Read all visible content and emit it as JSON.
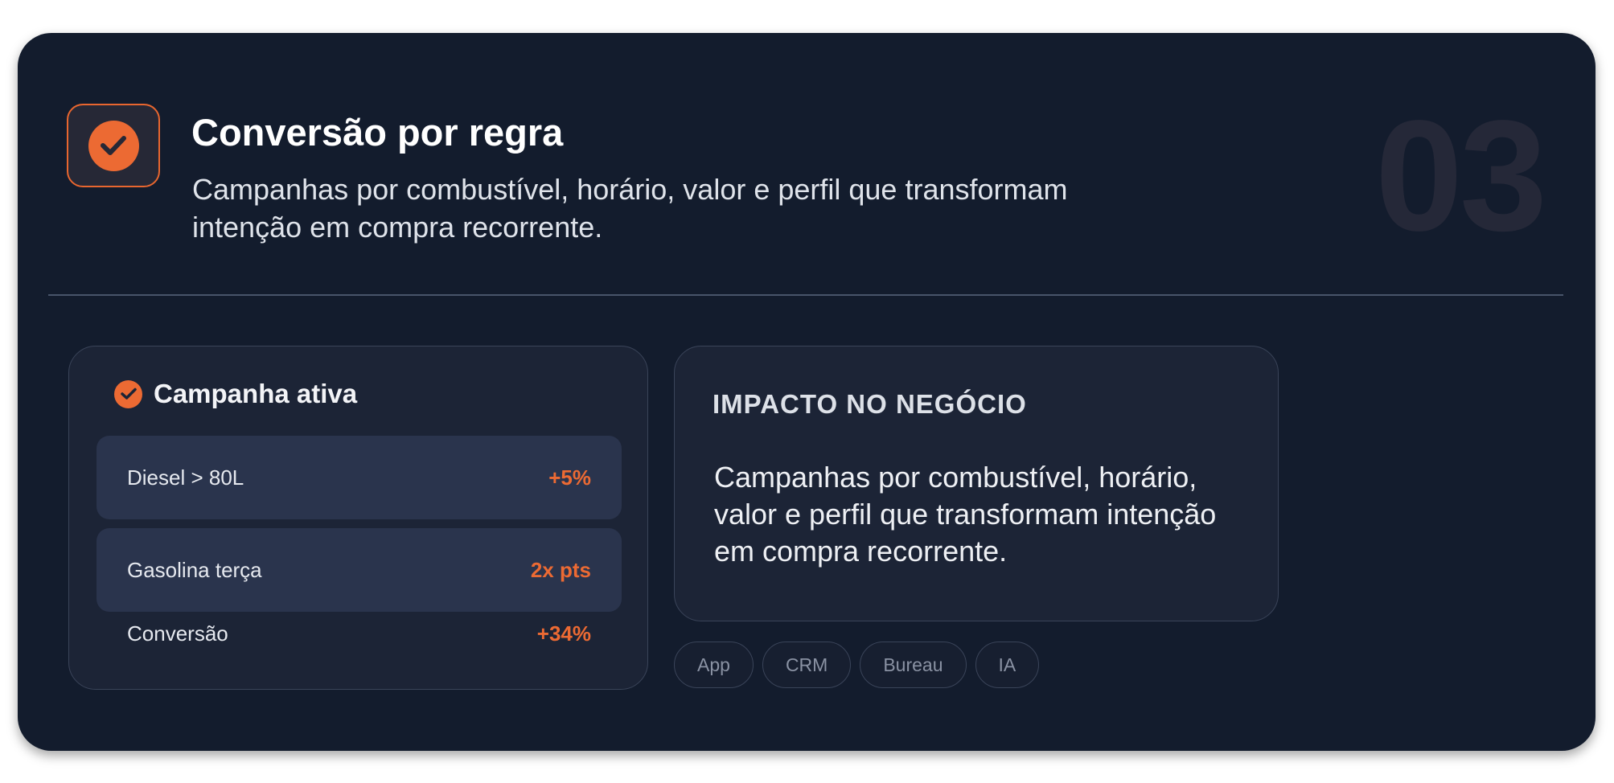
{
  "header": {
    "title": "Conversão por regra",
    "subtitle": "Campanhas por combustível, horário, valor e perfil que transformam intenção em compra recorrente.",
    "step_number": "03",
    "icon": "check-circle-icon"
  },
  "campaign": {
    "title": "Campanha ativa",
    "icon": "check-circle-icon",
    "rows": [
      {
        "label": "Diesel > 80L",
        "value": "+5%"
      },
      {
        "label": "Gasolina terça",
        "value": "2x pts"
      },
      {
        "label": "Conversão",
        "value": "+34%"
      }
    ]
  },
  "impact": {
    "label": "IMPACTO NO NEGÓCIO",
    "text": "Campanhas por combustível, horário, valor e perfil que transformam intenção em compra recorrente."
  },
  "tags": [
    "App",
    "CRM",
    "Bureau",
    "IA"
  ],
  "colors": {
    "background": "#131c2d",
    "accent": "#ec6a33",
    "card": "#1c2436",
    "row_highlight": "#2a344d"
  }
}
